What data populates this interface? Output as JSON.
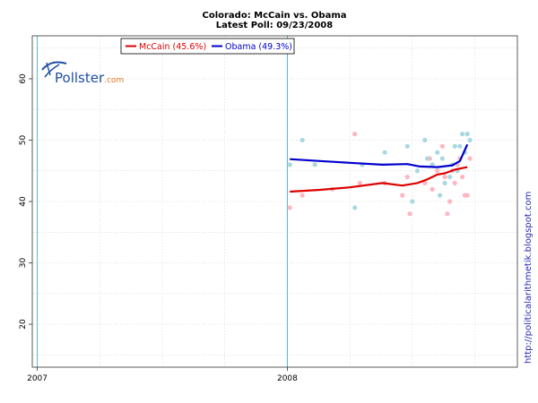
{
  "chart_data": {
    "type": "scatter",
    "title": "Colorado: McCain vs. Obama",
    "subtitle": "Latest Poll: 09/23/2008",
    "xlabel": "",
    "ylabel": "",
    "xlim": [
      2006.98,
      2008.92
    ],
    "ylim": [
      13,
      67
    ],
    "grid": true,
    "x_ticks": [
      {
        "value": 2007,
        "label": "2007"
      },
      {
        "value": 2008,
        "label": "2008"
      }
    ],
    "y_ticks": [
      20,
      30,
      40,
      50,
      60
    ],
    "year_markers": [
      2007,
      2008
    ],
    "legend_position": "top-left",
    "series": [
      {
        "name": "McCain (45.6%)",
        "color": "#dd0000",
        "point_color": "#ffb6c1",
        "trend": [
          [
            2008.01,
            41.6
          ],
          [
            2008.13,
            41.9
          ],
          [
            2008.25,
            42.3
          ],
          [
            2008.38,
            43.0
          ],
          [
            2008.46,
            42.6
          ],
          [
            2008.52,
            43.0
          ],
          [
            2008.56,
            43.6
          ],
          [
            2008.6,
            44.4
          ],
          [
            2008.63,
            44.6
          ],
          [
            2008.67,
            45.2
          ],
          [
            2008.72,
            45.6
          ]
        ],
        "points": [
          [
            2008.01,
            39
          ],
          [
            2008.06,
            41
          ],
          [
            2008.18,
            42
          ],
          [
            2008.27,
            51
          ],
          [
            2008.29,
            43
          ],
          [
            2008.39,
            43
          ],
          [
            2008.46,
            41
          ],
          [
            2008.48,
            44
          ],
          [
            2008.49,
            38
          ],
          [
            2008.55,
            43
          ],
          [
            2008.57,
            47
          ],
          [
            2008.58,
            42
          ],
          [
            2008.6,
            45
          ],
          [
            2008.62,
            49
          ],
          [
            2008.63,
            44
          ],
          [
            2008.64,
            38
          ],
          [
            2008.65,
            40
          ],
          [
            2008.66,
            45
          ],
          [
            2008.67,
            43
          ],
          [
            2008.68,
            46
          ],
          [
            2008.69,
            47
          ],
          [
            2008.7,
            44
          ],
          [
            2008.71,
            41
          ],
          [
            2008.72,
            41
          ],
          [
            2008.73,
            47
          ]
        ]
      },
      {
        "name": "Obama (49.3%)",
        "color": "#0000cc",
        "point_color": "#a8d8e0",
        "trend": [
          [
            2008.01,
            46.9
          ],
          [
            2008.13,
            46.6
          ],
          [
            2008.25,
            46.3
          ],
          [
            2008.38,
            46.0
          ],
          [
            2008.48,
            46.1
          ],
          [
            2008.53,
            45.7
          ],
          [
            2008.6,
            45.6
          ],
          [
            2008.66,
            45.9
          ],
          [
            2008.69,
            46.6
          ],
          [
            2008.72,
            49.3
          ]
        ],
        "points": [
          [
            2008.01,
            46
          ],
          [
            2008.06,
            50
          ],
          [
            2008.11,
            46
          ],
          [
            2008.27,
            39
          ],
          [
            2008.3,
            46
          ],
          [
            2008.39,
            48
          ],
          [
            2008.48,
            49
          ],
          [
            2008.5,
            40
          ],
          [
            2008.52,
            45
          ],
          [
            2008.55,
            50
          ],
          [
            2008.56,
            47
          ],
          [
            2008.58,
            46
          ],
          [
            2008.6,
            48
          ],
          [
            2008.61,
            41
          ],
          [
            2008.62,
            47
          ],
          [
            2008.63,
            43
          ],
          [
            2008.65,
            44
          ],
          [
            2008.66,
            46
          ],
          [
            2008.67,
            49
          ],
          [
            2008.68,
            45
          ],
          [
            2008.69,
            49
          ],
          [
            2008.7,
            51
          ],
          [
            2008.71,
            48
          ],
          [
            2008.72,
            51
          ],
          [
            2008.73,
            50
          ]
        ]
      }
    ],
    "watermark": {
      "logo": "Pollster",
      "suffix": ".com"
    },
    "side_label": "http://politicalarithmetik.blogspot.com"
  }
}
